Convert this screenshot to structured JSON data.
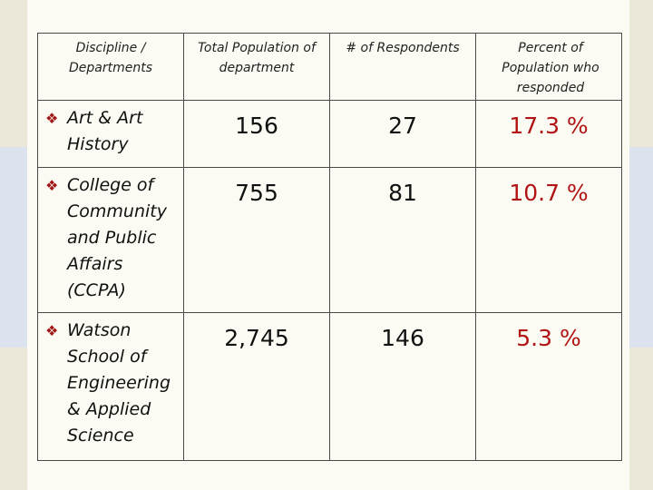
{
  "table": {
    "headers": [
      "Discipline / Departments",
      "Total Population of department",
      "# of Respondents",
      "Percent of Population who responded"
    ],
    "rows": [
      {
        "discipline": "Art & Art History",
        "total": "156",
        "respondents": "27",
        "percent": "17.3 %"
      },
      {
        "discipline": "College of Community and Public Affairs (CCPA)",
        "total": "755",
        "respondents": "81",
        "percent": "10.7 %"
      },
      {
        "discipline": "Watson School of Engineering & Applied Science",
        "total": "2,745",
        "respondents": "146",
        "percent": "5.3 %"
      }
    ]
  },
  "icons": {
    "bullet": "diamond-bullet-icon"
  },
  "colors": {
    "accent": "#b01414",
    "background": "#fbfbf3"
  }
}
